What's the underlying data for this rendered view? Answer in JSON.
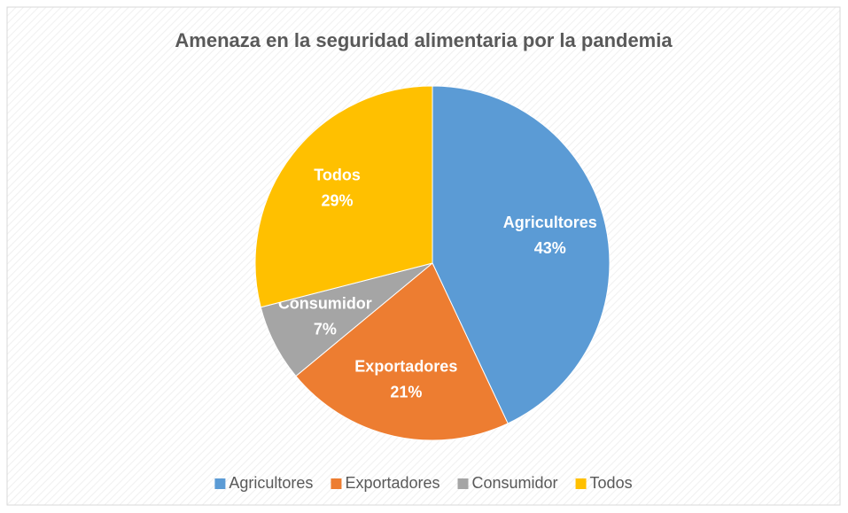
{
  "chart_data": {
    "type": "pie",
    "title": "Amenaza en la seguridad alimentaria por la pandemia",
    "categories": [
      "Agricultores",
      "Exportadores",
      "Consumidor",
      "Todos"
    ],
    "values": [
      43,
      21,
      7,
      29
    ],
    "value_labels": [
      "43%",
      "21%",
      "7%",
      "29%"
    ],
    "colors": [
      "#5b9bd5",
      "#ed7d31",
      "#a5a5a5",
      "#ffc000"
    ],
    "legend": "bottom"
  }
}
